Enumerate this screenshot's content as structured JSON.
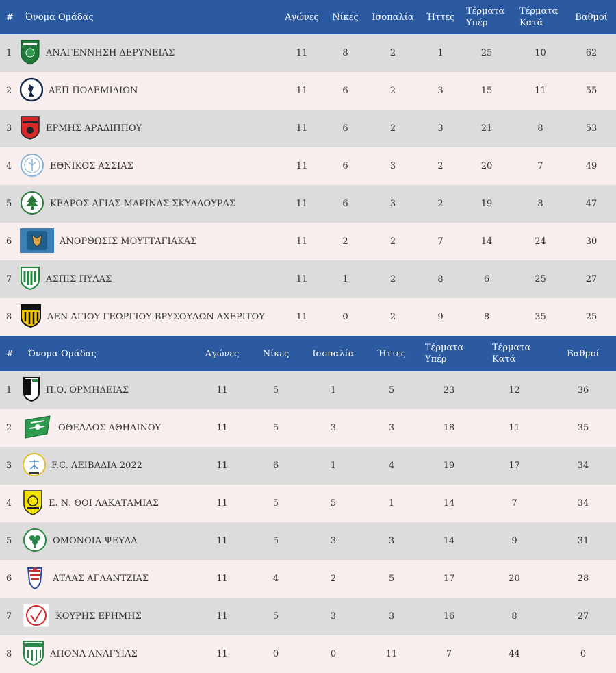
{
  "headers": {
    "rank": "#",
    "team": "Όνομα Ομάδας",
    "played": "Αγώνες",
    "wins": "Νίκες",
    "draws": "Ισοπαλία",
    "losses": "Ήττες",
    "goals_for_1": "Τέρματα",
    "goals_for_2": "Υπέρ",
    "goals_against_1": "Τέρματα",
    "goals_against_2": "Κατά",
    "points": "Βαθμοί"
  },
  "group1": [
    {
      "rank": "1",
      "team": "ΑΝΑΓΕΝΝΗΣΗ ΔΕΡΥΝΕΙΑΣ",
      "played": "11",
      "wins": "8",
      "draws": "2",
      "losses": "1",
      "gf": "25",
      "ga": "10",
      "pts": "62"
    },
    {
      "rank": "2",
      "team": "ΑΕΠ ΠΟΛΕΜΙΔΙΩΝ",
      "played": "11",
      "wins": "6",
      "draws": "2",
      "losses": "3",
      "gf": "15",
      "ga": "11",
      "pts": "55"
    },
    {
      "rank": "3",
      "team": "ΕΡΜΗΣ ΑΡΑΔΙΠΠΟΥ",
      "played": "11",
      "wins": "6",
      "draws": "2",
      "losses": "3",
      "gf": "21",
      "ga": "8",
      "pts": "53"
    },
    {
      "rank": "4",
      "team": "ΕΘΝΙΚΟΣ ΑΣΣΙΑΣ",
      "played": "11",
      "wins": "6",
      "draws": "3",
      "losses": "2",
      "gf": "20",
      "ga": "7",
      "pts": "49"
    },
    {
      "rank": "5",
      "team": "ΚΕΔΡΟΣ ΑΓΙΑΣ ΜΑΡΙΝΑΣ ΣΚΥΛΛΟΥΡΑΣ",
      "played": "11",
      "wins": "6",
      "draws": "3",
      "losses": "2",
      "gf": "19",
      "ga": "8",
      "pts": "47"
    },
    {
      "rank": "6",
      "team": "ΑΝΟΡΘΩΣΙΣ ΜΟΥΤΤΑΓΙΑΚΑΣ",
      "played": "11",
      "wins": "2",
      "draws": "2",
      "losses": "7",
      "gf": "14",
      "ga": "24",
      "pts": "30"
    },
    {
      "rank": "7",
      "team": "ΑΣΠΙΣ ΠΥΛΑΣ",
      "played": "11",
      "wins": "1",
      "draws": "2",
      "losses": "8",
      "gf": "6",
      "ga": "25",
      "pts": "27"
    },
    {
      "rank": "8",
      "team": "ΑΕΝ ΑΓΙΟΥ ΓΕΩΡΓΙΟΥ ΒΡΥΣΟΥΛΩΝ ΑΧΕΡΙΤΟΥ",
      "played": "11",
      "wins": "0",
      "draws": "2",
      "losses": "9",
      "gf": "8",
      "ga": "35",
      "pts": "25"
    }
  ],
  "group2": [
    {
      "rank": "1",
      "team": "Π.Ο. ΟΡΜΗΔΕΙΑΣ",
      "played": "11",
      "wins": "5",
      "draws": "1",
      "losses": "5",
      "gf": "23",
      "ga": "12",
      "pts": "36"
    },
    {
      "rank": "2",
      "team": "ΟΘΕΛΛΟΣ ΑΘΗΑΙΝΟΥ",
      "played": "11",
      "wins": "5",
      "draws": "3",
      "losses": "3",
      "gf": "18",
      "ga": "11",
      "pts": "35"
    },
    {
      "rank": "3",
      "team": "F.C. ΛΕΙΒΑΔΙΑ 2022",
      "played": "11",
      "wins": "6",
      "draws": "1",
      "losses": "4",
      "gf": "19",
      "ga": "17",
      "pts": "34"
    },
    {
      "rank": "4",
      "team": "Ε. Ν. ΘΟΙ ΛΑΚΑΤΑΜΙΑΣ",
      "played": "11",
      "wins": "5",
      "draws": "5",
      "losses": "1",
      "gf": "14",
      "ga": "7",
      "pts": "34"
    },
    {
      "rank": "5",
      "team": "ΟΜΟΝΟΙΑ ΨΕΥΔΑ",
      "played": "11",
      "wins": "5",
      "draws": "3",
      "losses": "3",
      "gf": "14",
      "ga": "9",
      "pts": "31"
    },
    {
      "rank": "6",
      "team": "ΑΤΛΑΣ ΑΓΛΑΝΤΖΙΑΣ",
      "played": "11",
      "wins": "4",
      "draws": "2",
      "losses": "5",
      "gf": "17",
      "ga": "20",
      "pts": "28"
    },
    {
      "rank": "7",
      "team": "ΚΟΥΡΗΣ ΕΡΗΜΗΣ",
      "played": "11",
      "wins": "5",
      "draws": "3",
      "losses": "3",
      "gf": "16",
      "ga": "8",
      "pts": "27"
    },
    {
      "rank": "8",
      "team": "ΑΠΟΝΑ ΑΝΑΓΥΙΑΣ",
      "played": "11",
      "wins": "0",
      "draws": "0",
      "losses": "11",
      "gf": "7",
      "ga": "44",
      "pts": "0"
    }
  ],
  "logos": {
    "group1": [
      "anagennisi-deryneias-crest-icon",
      "aep-polemidion-crest-icon",
      "ermis-aradippou-crest-icon",
      "ethnikos-assias-crest-icon",
      "kedros-crest-icon",
      "anorthosis-mouttagiakas-crest-icon",
      "aspis-pylas-crest-icon",
      "aen-acheritou-crest-icon"
    ],
    "group2": [
      "po-ormideias-crest-icon",
      "othellos-athienou-crest-icon",
      "fc-livadia-crest-icon",
      "thoi-lakatamias-crest-icon",
      "omonoia-psevda-crest-icon",
      "atlas-aglantzias-crest-icon",
      "kouris-erimis-crest-icon",
      "apona-anagyias-crest-icon"
    ]
  },
  "colors": {
    "header_bg": "#2c5aa0",
    "row_odd": "#dcdcdc",
    "row_even": "#f8eeee"
  }
}
